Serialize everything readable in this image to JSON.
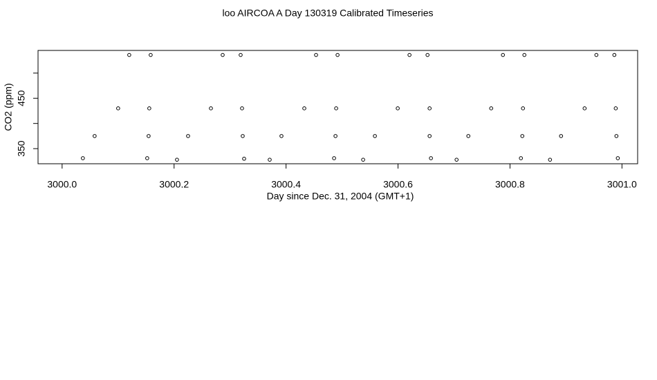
{
  "chart_data": {
    "type": "scatter",
    "title": "loo AIRCOA A  Day 130319  Calibrated Timeseries",
    "xlabel": "Day since Dec. 31, 2004 (GMT+1)",
    "ylabel": "CO2 (ppm)",
    "color": "#000000",
    "x": [
      3000.1199,
      3000.1582,
      3000.2868,
      3000.3189,
      3000.4536,
      3000.492,
      3000.6205,
      3000.6527,
      3000.7874,
      3000.8257,
      3000.9543,
      3000.9864,
      3000.1001,
      3000.1557,
      3000.2658,
      3000.3214,
      3000.4326,
      3000.4895,
      3000.5995,
      3000.6564,
      3000.7664,
      3000.8232,
      3000.9333,
      3000.9889,
      3000.0581,
      3000.1545,
      3000.225,
      3000.3226,
      3000.3918,
      3000.4883,
      3000.5587,
      3000.6564,
      3000.7256,
      3000.822,
      3000.8912,
      3000.9901,
      3000.0371,
      3000.152,
      3000.2052,
      3000.3251,
      3000.3708,
      3000.4858,
      3000.5377,
      3000.6588,
      3000.7046,
      3000.8195,
      3000.8715,
      3000.9926
    ],
    "values": [
      536,
      536,
      536,
      536,
      536,
      536,
      536,
      536,
      536,
      536,
      536,
      536,
      430,
      430,
      430,
      430,
      430,
      430,
      430,
      430,
      430,
      430,
      430,
      430,
      375,
      375,
      375,
      375,
      375,
      375,
      375,
      375,
      375,
      375,
      375,
      375,
      331,
      331,
      328,
      330,
      328,
      331,
      328,
      331,
      328,
      331,
      328,
      331
    ],
    "xlim": [
      2999.957,
      3001.028
    ],
    "ylim": [
      320,
      545
    ],
    "xticks": [
      {
        "value": 3000.0,
        "label": "3000.0"
      },
      {
        "value": 3000.2,
        "label": "3000.2"
      },
      {
        "value": 3000.4,
        "label": "3000.4"
      },
      {
        "value": 3000.6,
        "label": "3000.6"
      },
      {
        "value": 3000.8,
        "label": "3000.8"
      },
      {
        "value": 3001.0,
        "label": "3001.0"
      }
    ],
    "yticks": [
      350,
      400,
      450,
      500
    ]
  }
}
